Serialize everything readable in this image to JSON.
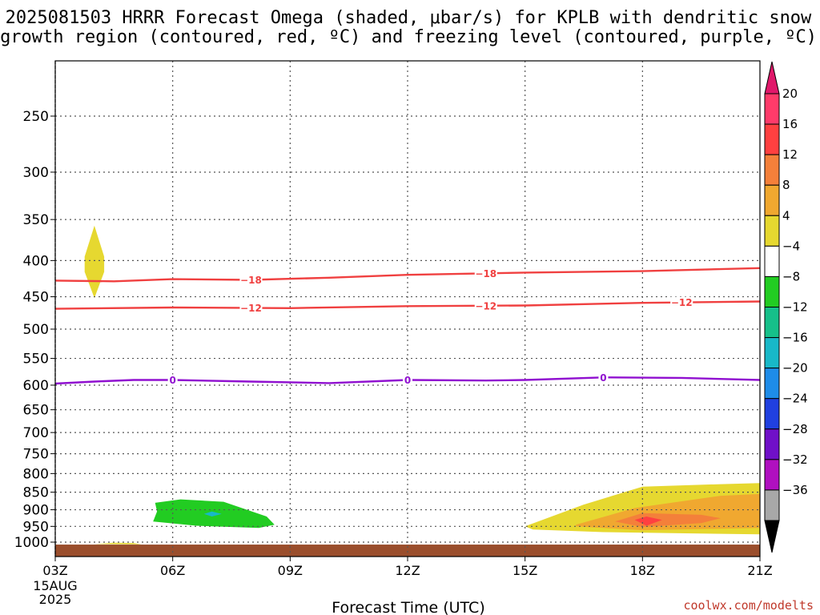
{
  "chart_data": {
    "type": "heatmap",
    "title_lines": [
      "2025081503 HRRR Forecast Omega (shaded, μbar/s) for KPLB with dendritic snow",
      "growth region (contoured, red, ºC) and freezing level (contoured, purple, ºC)"
    ],
    "xlabel": "Forecast Time (UTC)",
    "x_ticks": [
      "03Z",
      "06Z",
      "09Z",
      "12Z",
      "15Z",
      "18Z",
      "21Z"
    ],
    "x_tick_hours": [
      3,
      6,
      9,
      12,
      15,
      18,
      21
    ],
    "x_range": [
      3,
      21
    ],
    "x_date_lines": [
      "15AUG",
      "2025"
    ],
    "y_ticks": [
      250,
      300,
      350,
      400,
      450,
      500,
      550,
      600,
      650,
      700,
      750,
      800,
      850,
      900,
      950,
      1000
    ],
    "y_range_hPa": [
      200,
      1030
    ],
    "y_scale": "log (pressure)",
    "grid": "dotted",
    "colorbar": {
      "labels": [
        "20",
        "16",
        "12",
        "8",
        "4",
        "−4",
        "−8",
        "−12",
        "−16",
        "−20",
        "−24",
        "−28",
        "−32",
        "−36"
      ],
      "colors": [
        "#ff3b6a",
        "#ff4040",
        "#f4803a",
        "#f0a830",
        "#e6d830",
        "#ffffff",
        "#22cc22",
        "#16c08a",
        "#18b8c8",
        "#1e8ce8",
        "#2040e0",
        "#7010c8",
        "#b010c0",
        "#a8a8a8"
      ],
      "top_arrow_color": "#e0186a",
      "bottom_arrow_color": "#000000"
    },
    "contours": [
      {
        "color": "#f04040",
        "value": -18,
        "label": "−18",
        "points": [
          [
            3,
            427
          ],
          [
            4.5,
            428
          ],
          [
            6,
            425
          ],
          [
            8,
            426
          ],
          [
            10,
            423
          ],
          [
            12,
            419
          ],
          [
            15,
            416
          ],
          [
            18,
            414
          ],
          [
            21,
            410
          ]
        ],
        "label_hours": [
          8,
          14
        ]
      },
      {
        "color": "#f04040",
        "value": -12,
        "label": "−12",
        "points": [
          [
            3,
            468
          ],
          [
            6,
            466
          ],
          [
            9,
            467
          ],
          [
            12,
            464
          ],
          [
            15,
            463
          ],
          [
            18,
            459
          ],
          [
            21,
            457
          ]
        ],
        "label_hours": [
          8,
          14,
          19
        ]
      },
      {
        "color": "#9010d0",
        "value": 0,
        "label": "0",
        "points": [
          [
            3,
            597
          ],
          [
            4,
            593
          ],
          [
            5,
            590
          ],
          [
            6,
            590
          ],
          [
            8,
            593
          ],
          [
            10,
            596
          ],
          [
            12,
            590
          ],
          [
            14,
            591
          ],
          [
            15,
            590
          ],
          [
            17,
            585
          ],
          [
            19,
            586
          ],
          [
            21,
            590
          ]
        ],
        "label_hours": [
          6,
          12,
          17
        ]
      }
    ],
    "shaded_regions": [
      {
        "color": "#e6d830",
        "value_range": "4 to 8",
        "points": [
          [
            4,
            357
          ],
          [
            4.25,
            395
          ],
          [
            4.25,
            415
          ],
          [
            4,
            452
          ],
          [
            3.75,
            415
          ],
          [
            3.75,
            395
          ]
        ]
      },
      {
        "color": "#22cc22",
        "value_range": "-8 to -4",
        "points": [
          [
            5.55,
            880
          ],
          [
            6.2,
            870
          ],
          [
            7.3,
            877
          ],
          [
            8.4,
            920
          ],
          [
            8.6,
            945
          ],
          [
            8.2,
            955
          ],
          [
            6.6,
            948
          ],
          [
            5.5,
            935
          ],
          [
            5.6,
            905
          ]
        ]
      },
      {
        "color": "#18b8c8",
        "value_range": "-16 to -12",
        "points": [
          [
            6.8,
            912
          ],
          [
            7.0,
            905
          ],
          [
            7.25,
            912
          ],
          [
            7.0,
            920
          ]
        ]
      },
      {
        "color": "#e6d830",
        "value_range": "4 to 8",
        "points": [
          [
            15,
            950
          ],
          [
            16.5,
            885
          ],
          [
            18,
            835
          ],
          [
            20,
            828
          ],
          [
            21,
            825
          ],
          [
            21,
            975
          ],
          [
            17,
            968
          ],
          [
            15.2,
            960
          ]
        ]
      },
      {
        "color": "#f0a830",
        "value_range": "8 to 12",
        "points": [
          [
            16.3,
            945
          ],
          [
            17.8,
            895
          ],
          [
            20,
            860
          ],
          [
            21,
            855
          ],
          [
            21,
            955
          ],
          [
            18,
            962
          ],
          [
            16.3,
            950
          ]
        ]
      },
      {
        "color": "#f4803a",
        "value_range": "12 to 16",
        "points": [
          [
            17.3,
            935
          ],
          [
            18,
            910
          ],
          [
            19.5,
            915
          ],
          [
            20,
            925
          ],
          [
            19.5,
            940
          ],
          [
            18,
            952
          ]
        ]
      },
      {
        "color": "#ff4040",
        "value_range": "16 to 20",
        "points": [
          [
            17.8,
            930
          ],
          [
            18.1,
            920
          ],
          [
            18.5,
            930
          ],
          [
            18.1,
            948
          ]
        ]
      },
      {
        "color": "#e6d830",
        "value_range": "4 to 8",
        "points": [
          [
            4.0,
            1006
          ],
          [
            4.5,
            1002
          ],
          [
            5.0,
            1003
          ],
          [
            5.2,
            1007
          ]
        ]
      }
    ],
    "ground_color": "#9a4e2c",
    "ground_top_hPa": 1008
  },
  "credit": "coolwx.com/modelts"
}
